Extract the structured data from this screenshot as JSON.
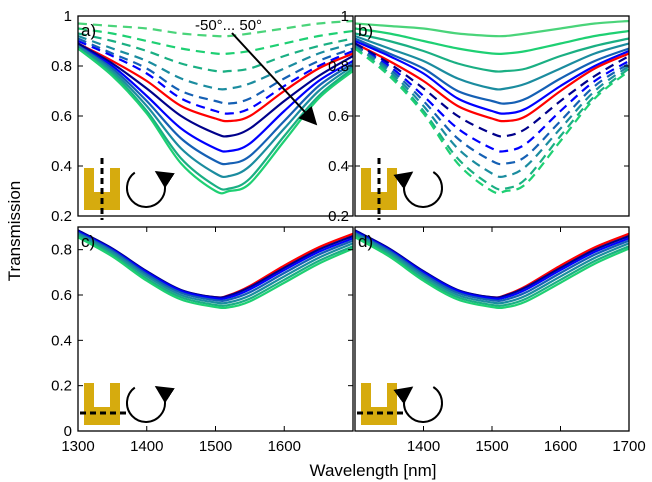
{
  "xlabel": "Wavelength [nm]",
  "ylabel": "Transmission",
  "annotation": "-50°... 50°",
  "colors": {
    "reference": "#ff0000",
    "gradient": [
      "#00008b",
      "#0000ff",
      "#1560b4",
      "#1b8c9f",
      "#1aaf83",
      "#1ed073",
      "#4ad47a"
    ],
    "inset": "#d6ab0e",
    "axis": "#000000"
  },
  "chart_data": [
    {
      "type": "line",
      "panel_label": "a)",
      "xlim": [
        1300,
        1700
      ],
      "ylim": [
        0.2,
        1
      ],
      "xticks": [],
      "yticks": [
        0.2,
        0.4,
        0.6,
        0.8,
        1
      ],
      "ytick_labels": [
        "0.2",
        "0.4",
        "0.6",
        "0.8",
        "1"
      ],
      "x": [
        1300,
        1350,
        1400,
        1450,
        1500,
        1520,
        1550,
        1600,
        1650,
        1700
      ],
      "series": [
        {
          "style": "dashed",
          "color": "#4ad47a",
          "values": [
            0.97,
            0.96,
            0.95,
            0.93,
            0.92,
            0.92,
            0.93,
            0.95,
            0.97,
            0.98
          ]
        },
        {
          "style": "dashed",
          "color": "#1ed073",
          "values": [
            0.95,
            0.93,
            0.9,
            0.87,
            0.85,
            0.85,
            0.86,
            0.89,
            0.92,
            0.94
          ]
        },
        {
          "style": "dashed",
          "color": "#1aaf83",
          "values": [
            0.93,
            0.9,
            0.86,
            0.81,
            0.78,
            0.78,
            0.79,
            0.84,
            0.88,
            0.91
          ]
        },
        {
          "style": "dashed",
          "color": "#1b8c9f",
          "values": [
            0.92,
            0.87,
            0.82,
            0.75,
            0.71,
            0.71,
            0.73,
            0.79,
            0.85,
            0.89
          ]
        },
        {
          "style": "dashed",
          "color": "#1560b4",
          "values": [
            0.91,
            0.85,
            0.79,
            0.7,
            0.66,
            0.65,
            0.67,
            0.75,
            0.82,
            0.87
          ]
        },
        {
          "style": "dashed",
          "color": "#0000ff",
          "values": [
            0.9,
            0.84,
            0.77,
            0.67,
            0.62,
            0.61,
            0.63,
            0.72,
            0.8,
            0.86
          ]
        },
        {
          "style": "solid",
          "color": "#ff0000",
          "values": [
            0.89,
            0.82,
            0.74,
            0.64,
            0.59,
            0.58,
            0.6,
            0.7,
            0.79,
            0.85
          ]
        },
        {
          "style": "solid",
          "color": "#00008b",
          "values": [
            0.89,
            0.81,
            0.71,
            0.6,
            0.53,
            0.52,
            0.55,
            0.66,
            0.76,
            0.84
          ]
        },
        {
          "style": "solid",
          "color": "#0000ff",
          "values": [
            0.88,
            0.8,
            0.68,
            0.55,
            0.47,
            0.46,
            0.49,
            0.62,
            0.74,
            0.82
          ]
        },
        {
          "style": "solid",
          "color": "#1560b4",
          "values": [
            0.88,
            0.79,
            0.66,
            0.51,
            0.42,
            0.41,
            0.44,
            0.58,
            0.72,
            0.81
          ]
        },
        {
          "style": "solid",
          "color": "#1b8c9f",
          "values": [
            0.88,
            0.78,
            0.64,
            0.47,
            0.37,
            0.36,
            0.4,
            0.55,
            0.7,
            0.8
          ]
        },
        {
          "style": "solid",
          "color": "#1aaf83",
          "values": [
            0.87,
            0.77,
            0.62,
            0.43,
            0.32,
            0.31,
            0.35,
            0.52,
            0.68,
            0.79
          ]
        },
        {
          "style": "solid",
          "color": "#1ed073",
          "values": [
            0.87,
            0.76,
            0.61,
            0.41,
            0.3,
            0.3,
            0.33,
            0.5,
            0.67,
            0.78
          ]
        }
      ]
    },
    {
      "type": "line",
      "panel_label": "b)",
      "xlim": [
        1300,
        1700
      ],
      "ylim": [
        0.2,
        1
      ],
      "xticks": [],
      "yticks": [
        0.2,
        0.4,
        0.6,
        0.8,
        1
      ],
      "ytick_labels": [
        "0.2",
        "0.4",
        "0.6",
        "0.8",
        "1"
      ],
      "x": [
        1300,
        1350,
        1400,
        1450,
        1500,
        1520,
        1550,
        1600,
        1650,
        1700
      ],
      "series": [
        {
          "style": "solid",
          "color": "#4ad47a",
          "values": [
            0.97,
            0.96,
            0.95,
            0.93,
            0.92,
            0.92,
            0.93,
            0.95,
            0.97,
            0.98
          ]
        },
        {
          "style": "solid",
          "color": "#1ed073",
          "values": [
            0.95,
            0.93,
            0.9,
            0.87,
            0.85,
            0.85,
            0.86,
            0.89,
            0.92,
            0.94
          ]
        },
        {
          "style": "solid",
          "color": "#1aaf83",
          "values": [
            0.93,
            0.9,
            0.86,
            0.81,
            0.78,
            0.78,
            0.79,
            0.84,
            0.88,
            0.91
          ]
        },
        {
          "style": "solid",
          "color": "#1b8c9f",
          "values": [
            0.92,
            0.87,
            0.82,
            0.75,
            0.71,
            0.71,
            0.73,
            0.79,
            0.85,
            0.89
          ]
        },
        {
          "style": "solid",
          "color": "#1560b4",
          "values": [
            0.91,
            0.85,
            0.79,
            0.7,
            0.66,
            0.65,
            0.67,
            0.75,
            0.82,
            0.87
          ]
        },
        {
          "style": "solid",
          "color": "#0000ff",
          "values": [
            0.9,
            0.84,
            0.77,
            0.67,
            0.62,
            0.61,
            0.63,
            0.72,
            0.8,
            0.86
          ]
        },
        {
          "style": "solid",
          "color": "#ff0000",
          "values": [
            0.89,
            0.82,
            0.74,
            0.64,
            0.59,
            0.58,
            0.6,
            0.7,
            0.79,
            0.85
          ]
        },
        {
          "style": "dashed",
          "color": "#00008b",
          "values": [
            0.89,
            0.81,
            0.71,
            0.6,
            0.53,
            0.52,
            0.55,
            0.66,
            0.76,
            0.84
          ]
        },
        {
          "style": "dashed",
          "color": "#0000ff",
          "values": [
            0.88,
            0.8,
            0.68,
            0.55,
            0.47,
            0.46,
            0.49,
            0.62,
            0.74,
            0.82
          ]
        },
        {
          "style": "dashed",
          "color": "#1560b4",
          "values": [
            0.88,
            0.79,
            0.66,
            0.51,
            0.42,
            0.41,
            0.44,
            0.58,
            0.72,
            0.81
          ]
        },
        {
          "style": "dashed",
          "color": "#1b8c9f",
          "values": [
            0.88,
            0.78,
            0.64,
            0.47,
            0.37,
            0.36,
            0.4,
            0.55,
            0.7,
            0.8
          ]
        },
        {
          "style": "dashed",
          "color": "#1aaf83",
          "values": [
            0.87,
            0.77,
            0.62,
            0.43,
            0.32,
            0.31,
            0.35,
            0.52,
            0.68,
            0.79
          ]
        },
        {
          "style": "dashed",
          "color": "#1ed073",
          "values": [
            0.87,
            0.76,
            0.61,
            0.41,
            0.3,
            0.3,
            0.33,
            0.5,
            0.67,
            0.78
          ]
        }
      ]
    },
    {
      "type": "line",
      "panel_label": "c)",
      "xlim": [
        1300,
        1700
      ],
      "ylim": [
        0,
        0.9
      ],
      "xticks": [
        1300,
        1400,
        1500,
        1600
      ],
      "xtick_labels": [
        "1300",
        "1400",
        "1500",
        "1600"
      ],
      "yticks": [
        0,
        0.2,
        0.4,
        0.6,
        0.8
      ],
      "ytick_labels": [
        "0",
        "0.2",
        "0.4",
        "0.6",
        "0.8"
      ],
      "x": [
        1300,
        1350,
        1400,
        1450,
        1500,
        1520,
        1550,
        1600,
        1650,
        1700
      ],
      "series": [
        {
          "style": "solid",
          "color": "#ff0000",
          "values": [
            0.88,
            0.8,
            0.7,
            0.62,
            0.59,
            0.6,
            0.64,
            0.73,
            0.81,
            0.87
          ]
        },
        {
          "style": "solid",
          "color": "#00008b",
          "values": [
            0.885,
            0.805,
            0.705,
            0.622,
            0.59,
            0.598,
            0.635,
            0.72,
            0.8,
            0.86
          ]
        },
        {
          "style": "solid",
          "color": "#0000ff",
          "values": [
            0.88,
            0.8,
            0.7,
            0.618,
            0.585,
            0.59,
            0.625,
            0.71,
            0.79,
            0.85
          ]
        },
        {
          "style": "solid",
          "color": "#1560b4",
          "values": [
            0.875,
            0.795,
            0.692,
            0.61,
            0.577,
            0.58,
            0.612,
            0.697,
            0.778,
            0.84
          ]
        },
        {
          "style": "solid",
          "color": "#1b8c9f",
          "values": [
            0.87,
            0.788,
            0.683,
            0.6,
            0.567,
            0.568,
            0.598,
            0.682,
            0.764,
            0.828
          ]
        },
        {
          "style": "solid",
          "color": "#1aaf83",
          "values": [
            0.862,
            0.778,
            0.672,
            0.59,
            0.556,
            0.556,
            0.584,
            0.667,
            0.75,
            0.815
          ]
        },
        {
          "style": "solid",
          "color": "#1ed073",
          "values": [
            0.855,
            0.77,
            0.663,
            0.58,
            0.547,
            0.546,
            0.572,
            0.654,
            0.738,
            0.805
          ]
        }
      ]
    },
    {
      "type": "line",
      "panel_label": "d)",
      "xlim": [
        1300,
        1700
      ],
      "ylim": [
        0,
        0.9
      ],
      "xticks": [
        1300,
        1400,
        1500,
        1600,
        1700
      ],
      "xtick_labels": [
        "",
        "1400",
        "1500",
        "1600",
        "1700"
      ],
      "yticks": [],
      "x": [
        1300,
        1350,
        1400,
        1450,
        1500,
        1520,
        1550,
        1600,
        1650,
        1700
      ],
      "series": [
        {
          "style": "solid",
          "color": "#ff0000",
          "values": [
            0.88,
            0.8,
            0.7,
            0.62,
            0.59,
            0.6,
            0.64,
            0.73,
            0.81,
            0.87
          ]
        },
        {
          "style": "solid",
          "color": "#00008b",
          "values": [
            0.885,
            0.805,
            0.705,
            0.622,
            0.59,
            0.598,
            0.635,
            0.72,
            0.8,
            0.86
          ]
        },
        {
          "style": "solid",
          "color": "#0000ff",
          "values": [
            0.88,
            0.8,
            0.7,
            0.618,
            0.585,
            0.59,
            0.625,
            0.71,
            0.79,
            0.85
          ]
        },
        {
          "style": "solid",
          "color": "#1560b4",
          "values": [
            0.875,
            0.795,
            0.692,
            0.61,
            0.577,
            0.58,
            0.612,
            0.697,
            0.778,
            0.84
          ]
        },
        {
          "style": "solid",
          "color": "#1b8c9f",
          "values": [
            0.87,
            0.788,
            0.683,
            0.6,
            0.567,
            0.568,
            0.598,
            0.682,
            0.764,
            0.828
          ]
        },
        {
          "style": "solid",
          "color": "#1aaf83",
          "values": [
            0.862,
            0.778,
            0.672,
            0.59,
            0.556,
            0.556,
            0.584,
            0.667,
            0.75,
            0.815
          ]
        },
        {
          "style": "solid",
          "color": "#1ed073",
          "values": [
            0.855,
            0.77,
            0.663,
            0.58,
            0.547,
            0.546,
            0.572,
            0.654,
            0.738,
            0.805
          ]
        }
      ]
    }
  ]
}
